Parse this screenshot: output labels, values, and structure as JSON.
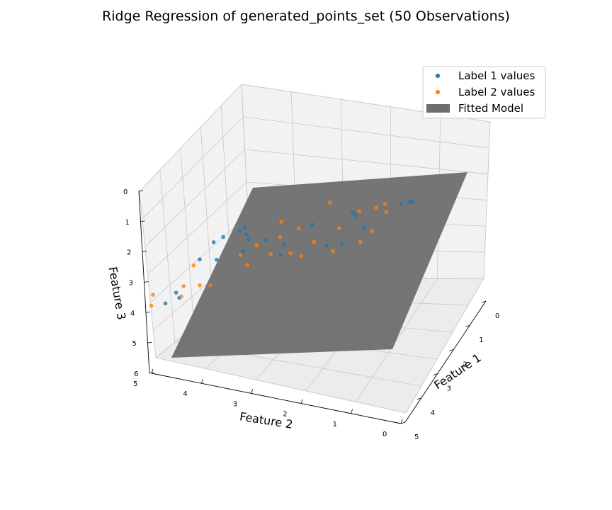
{
  "chart_data": {
    "type": "scatter",
    "title": "Ridge Regression of generated_points_set (50 Observations)",
    "xlabel": "Feature 1",
    "ylabel": "Feature 2",
    "zlabel": "Feature 3",
    "x_ticks": [
      "0",
      "1",
      "2",
      "3",
      "4",
      "5"
    ],
    "y_ticks": [
      "0",
      "1",
      "2",
      "3",
      "4",
      "5"
    ],
    "z_ticks": [
      "0",
      "1",
      "2",
      "3",
      "4",
      "5",
      "6"
    ],
    "xlim": [
      0,
      5
    ],
    "ylim": [
      0,
      5
    ],
    "zlim": [
      0,
      6
    ],
    "z_axis_inverted": true,
    "grid": true,
    "legend_position": "top-right",
    "legend": [
      "Label 1 values",
      "Label 2 values",
      "Fitted Model"
    ],
    "series": [
      {
        "name": "Label 1 values",
        "color": "#1f77b4",
        "points": [
          [
            3.4,
            0.2,
            0.6
          ],
          [
            3.3,
            0.3,
            0.7
          ],
          [
            3.0,
            0.6,
            1.0
          ],
          [
            3.3,
            1.4,
            1.3
          ],
          [
            3.2,
            1.5,
            1.3
          ],
          [
            3.4,
            1.2,
            1.6
          ],
          [
            3.8,
            1.5,
            1.9
          ],
          [
            3.5,
            2.2,
            1.6
          ],
          [
            3.8,
            1.8,
            2.0
          ],
          [
            3.7,
            2.7,
            2.2
          ],
          [
            3.9,
            2.7,
            2.4
          ],
          [
            3.6,
            3.1,
            2.2
          ],
          [
            3.5,
            3.5,
            2.3
          ],
          [
            3.2,
            3.8,
            2.3
          ],
          [
            3.8,
            3.5,
            2.5
          ],
          [
            2.5,
            4.0,
            2.7
          ],
          [
            2.9,
            3.8,
            2.6
          ],
          [
            3.9,
            4.0,
            2.8
          ],
          [
            2.6,
            4.4,
            3.0
          ],
          [
            2.6,
            4.6,
            3.2
          ],
          [
            3.3,
            4.6,
            3.3
          ],
          [
            4.5,
            4.6,
            3.6
          ],
          [
            3.9,
            4.8,
            4.2
          ],
          [
            4.1,
            5.0,
            4.3
          ]
        ]
      },
      {
        "name": "Label 2 values",
        "color": "#ff7f0e",
        "points": [
          [
            2.8,
            1.0,
            1.2
          ],
          [
            3.0,
            0.9,
            1.3
          ],
          [
            3.0,
            1.1,
            1.2
          ],
          [
            3.5,
            1.0,
            1.6
          ],
          [
            3.6,
            1.2,
            1.9
          ],
          [
            3.1,
            1.4,
            1.3
          ],
          [
            3.4,
            1.7,
            1.7
          ],
          [
            4.0,
            1.6,
            2.0
          ],
          [
            2.6,
            2.2,
            1.5
          ],
          [
            3.7,
            2.1,
            2.0
          ],
          [
            4.1,
            2.2,
            2.2
          ],
          [
            3.9,
            2.5,
            2.3
          ],
          [
            3.2,
            2.6,
            2.0
          ],
          [
            3.4,
            2.9,
            2.2
          ],
          [
            3.9,
            2.9,
            2.4
          ],
          [
            2.6,
            3.2,
            2.3
          ],
          [
            3.6,
            3.3,
            2.4
          ],
          [
            4.1,
            3.3,
            2.7
          ],
          [
            3.7,
            3.6,
            2.7
          ],
          [
            4.5,
            3.9,
            3.2
          ],
          [
            4.3,
            4.2,
            3.4
          ],
          [
            3.6,
            4.6,
            3.3
          ],
          [
            3.9,
            4.7,
            3.8
          ],
          [
            4.5,
            4.5,
            3.7
          ],
          [
            4.3,
            5.2,
            4.3
          ],
          [
            4.2,
            5.2,
            4.0
          ]
        ]
      }
    ],
    "surface": {
      "name": "Fitted Model",
      "color": "#6e6e6e"
    }
  }
}
